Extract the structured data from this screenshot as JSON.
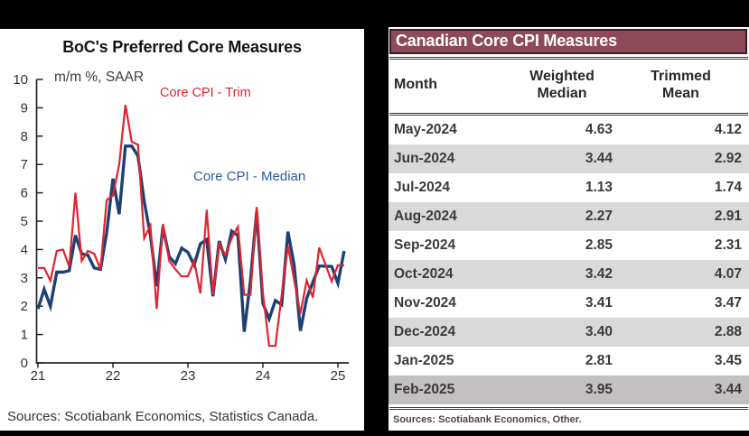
{
  "chart": {
    "title": "BoC's Preferred Core Measures",
    "unit_label": "m/m %, SAAR",
    "trim_label": "Core CPI - Trim",
    "median_label": "Core CPI - Median",
    "source": "Sources: Scotiabank Economics, Statistics Canada.",
    "y_ticks": [
      0,
      1,
      2,
      3,
      4,
      5,
      6,
      7,
      8,
      9,
      10
    ],
    "x_ticks": [
      "21",
      "22",
      "23",
      "24",
      "25"
    ]
  },
  "chart_data": {
    "type": "line",
    "title": "BoC's Preferred Core Measures",
    "ylabel": "m/m %, SAAR",
    "ylim": [
      0,
      10
    ],
    "x_frequency": "monthly",
    "x_start": "Jan-2021",
    "x_end": "Feb-2025",
    "x_tick_labels": [
      "21",
      "22",
      "23",
      "24",
      "25"
    ],
    "grid": false,
    "legend_position": "inline labels",
    "series": [
      {
        "name": "Core CPI - Trim",
        "color": "#e2232f",
        "values": [
          3.35,
          3.35,
          2.9,
          3.95,
          4.0,
          3.4,
          6.0,
          3.6,
          3.95,
          3.85,
          3.3,
          5.75,
          5.9,
          7.0,
          9.1,
          7.8,
          7.7,
          4.4,
          4.85,
          1.9,
          4.9,
          3.6,
          3.3,
          3.05,
          3.05,
          3.6,
          2.45,
          5.4,
          2.4,
          4.2,
          3.8,
          4.4,
          4.8,
          2.4,
          2.4,
          5.5,
          2.45,
          0.6,
          0.6,
          2.4,
          4.12,
          2.92,
          1.74,
          2.91,
          2.31,
          4.07,
          3.47,
          2.88,
          3.45,
          3.44
        ]
      },
      {
        "name": "Core CPI - Median",
        "color": "#1e4075",
        "values": [
          1.9,
          2.6,
          2.0,
          3.2,
          3.2,
          3.25,
          4.5,
          3.85,
          3.8,
          3.35,
          3.3,
          4.6,
          6.5,
          5.25,
          7.65,
          7.65,
          7.3,
          5.7,
          4.5,
          2.7,
          4.8,
          3.75,
          3.5,
          4.05,
          3.9,
          3.45,
          4.2,
          4.35,
          2.35,
          4.3,
          3.65,
          4.65,
          4.5,
          1.1,
          2.9,
          5.35,
          2.1,
          1.55,
          2.2,
          2.05,
          4.63,
          3.44,
          1.13,
          2.27,
          2.85,
          3.42,
          3.41,
          3.4,
          2.81,
          3.95
        ]
      }
    ]
  },
  "table": {
    "title": "Canadian Core CPI Measures",
    "columns": [
      "Month",
      "Weighted Median",
      "Trimmed Mean"
    ],
    "rows": [
      {
        "month": "May-2024",
        "weighted_median": "4.63",
        "trimmed_mean": "4.12",
        "highlight": false
      },
      {
        "month": "Jun-2024",
        "weighted_median": "3.44",
        "trimmed_mean": "2.92",
        "highlight": false
      },
      {
        "month": "Jul-2024",
        "weighted_median": "1.13",
        "trimmed_mean": "1.74",
        "highlight": false
      },
      {
        "month": "Aug-2024",
        "weighted_median": "2.27",
        "trimmed_mean": "2.91",
        "highlight": false
      },
      {
        "month": "Sep-2024",
        "weighted_median": "2.85",
        "trimmed_mean": "2.31",
        "highlight": false
      },
      {
        "month": "Oct-2024",
        "weighted_median": "3.42",
        "trimmed_mean": "4.07",
        "highlight": false
      },
      {
        "month": "Nov-2024",
        "weighted_median": "3.41",
        "trimmed_mean": "3.47",
        "highlight": false
      },
      {
        "month": "Dec-2024",
        "weighted_median": "3.40",
        "trimmed_mean": "2.88",
        "highlight": false
      },
      {
        "month": "Jan-2025",
        "weighted_median": "2.81",
        "trimmed_mean": "3.45",
        "highlight": false
      },
      {
        "month": "Feb-2025",
        "weighted_median": "3.95",
        "trimmed_mean": "3.44",
        "highlight": true
      }
    ],
    "source": "Sources: Scotiabank Economics, Other."
  }
}
